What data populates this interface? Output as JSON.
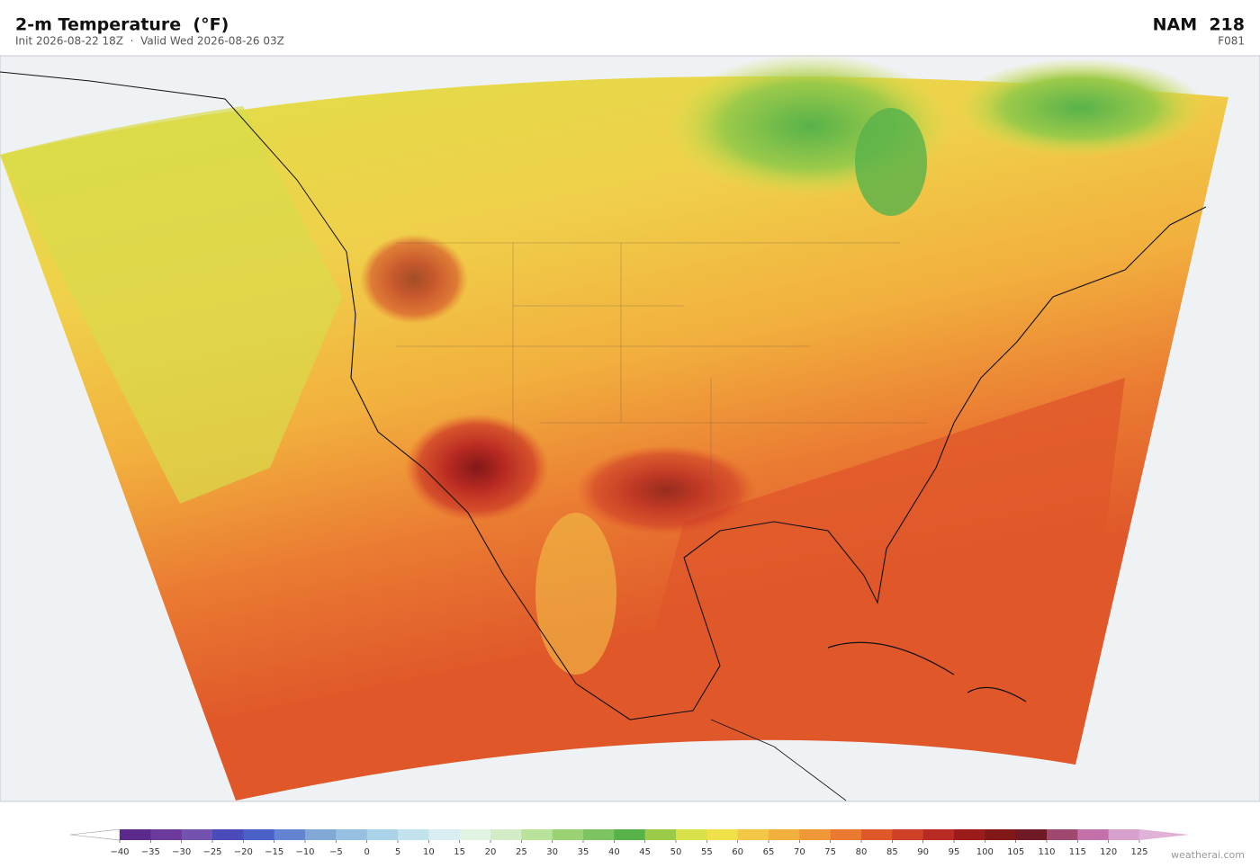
{
  "header": {
    "title": "2-m Temperature  (°F)",
    "subtitle": "Init 2026-08-22 18Z  ·  Valid Wed 2026-08-26 03Z",
    "model": "NAM  218",
    "forecast_hour": "F081"
  },
  "colorbar": {
    "ticks": [
      {
        "value": -40,
        "label": "−40"
      },
      {
        "value": -35,
        "label": "−35"
      },
      {
        "value": -30,
        "label": "−30"
      },
      {
        "value": -25,
        "label": "−25"
      },
      {
        "value": -20,
        "label": "−20"
      },
      {
        "value": -15,
        "label": "−15"
      },
      {
        "value": -10,
        "label": "−10"
      },
      {
        "value": -5,
        "label": "−5"
      },
      0,
      5,
      10,
      15,
      20,
      25,
      30,
      35,
      40,
      45,
      50,
      55,
      60,
      65,
      70,
      75,
      80,
      85,
      90,
      95,
      100,
      105,
      110,
      115,
      120,
      125
    ],
    "colors": [
      "#5b2a8c",
      "#6b3a9c",
      "#7452b0",
      "#4a4ab8",
      "#4a62c8",
      "#6484d2",
      "#82a8d8",
      "#98c0e2",
      "#aad2e8",
      "#c2e2ee",
      "#d8eef2",
      "#e2f2e2",
      "#d2ecc8",
      "#bae29a",
      "#9ad274",
      "#7cc462",
      "#58b24a",
      "#9cca4a",
      "#d8e04a",
      "#f0e04a",
      "#f4c846",
      "#f2b03e",
      "#ee9838",
      "#ea7a32",
      "#e0582a",
      "#d04028",
      "#b82a22",
      "#9c1c1c",
      "#821818",
      "#701a28",
      "#a04870",
      "#c272a8",
      "#d8a2cc"
    ],
    "under_color": "#ffffff",
    "over_color": "#e0b2d8"
  },
  "footer": {
    "credit": "weatherai.com"
  }
}
